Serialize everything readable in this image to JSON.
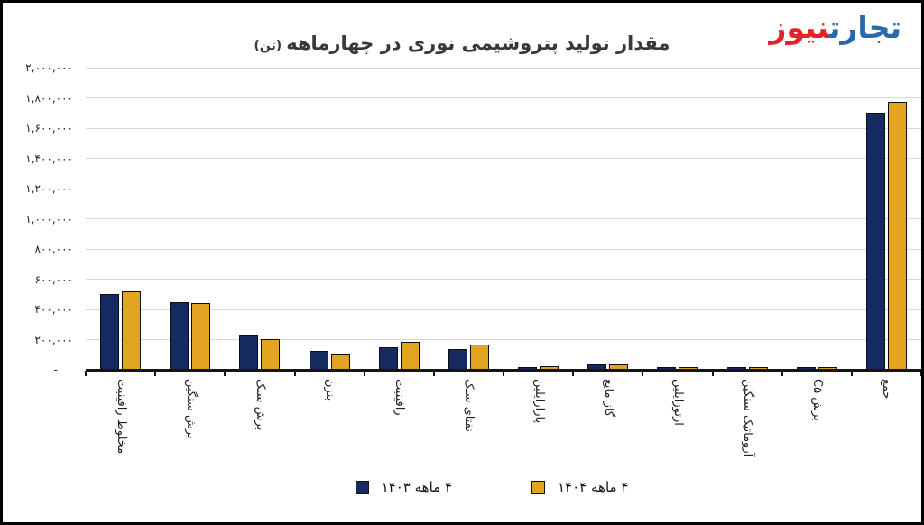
{
  "logo": {
    "blue_text": "تجارت",
    "red_text": "نیوز",
    "blue_color": "#2A68AC",
    "red_color": "#E2242A"
  },
  "chart_data": {
    "type": "bar",
    "direction": "rtl",
    "title": "مقدار تولید پتروشیمی نوری در چهارماهه",
    "title_unit": "(تن)",
    "categories": [
      "مخلوط رافینیت",
      "برش سنگین",
      "برش سبک",
      "بنزن",
      "رافینیت",
      "نفتای سبک",
      "پارازایلین",
      "گاز مایع",
      "ارتوزایلین",
      "آروماتیک سنگین",
      "برش C۵",
      "جمع"
    ],
    "series": [
      {
        "name": "۴ ماهه ۱۴۰۳",
        "color": "#142A61",
        "values": [
          500000,
          445000,
          230000,
          127000,
          150000,
          140000,
          10000,
          35000,
          15000,
          18000,
          10000,
          1700000
        ]
      },
      {
        "name": "۴ ماهه ۱۴۰۴",
        "color": "#E2A421",
        "values": [
          517000,
          443000,
          205000,
          110000,
          183000,
          168000,
          25000,
          36000,
          13000,
          12000,
          6000,
          1775000
        ]
      }
    ],
    "ylim": [
      0,
      2000000
    ],
    "ytick_step": 200000,
    "ytick_labels_top_to_bottom": [
      "۲,۰۰۰,۰۰۰",
      "۱,۸۰۰,۰۰۰",
      "۱,۶۰۰,۰۰۰",
      "۱,۴۰۰,۰۰۰",
      "۱,۲۰۰,۰۰۰",
      "۱,۰۰۰,۰۰۰",
      "۸۰۰,۰۰۰",
      "۶۰۰,۰۰۰",
      "۴۰۰,۰۰۰",
      "۲۰۰,۰۰۰",
      "-"
    ],
    "grid": true,
    "bar_outline_color": "#0d0d0d",
    "legend_position": "bottom"
  }
}
